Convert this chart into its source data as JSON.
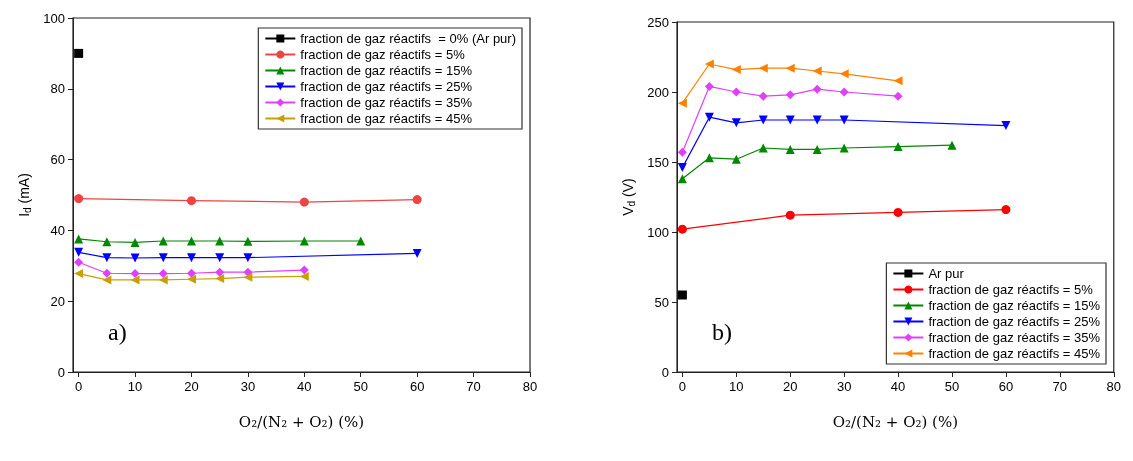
{
  "chart_data": [
    {
      "type": "line",
      "xlabel": "O₂/(N₂ + O₂) (%)",
      "ylabel": "I$_{d}$ (mA)",
      "xlim": [
        -1,
        80
      ],
      "xticks": [
        0,
        10,
        20,
        30,
        40,
        50,
        60,
        70,
        80
      ],
      "ylim": [
        0,
        100
      ],
      "yticks": [
        0,
        20,
        40,
        60,
        80,
        100
      ],
      "grid": false,
      "legend": "top right",
      "annotations": [
        "a)"
      ],
      "series": [
        {
          "name": "fraction de gaz réactifs  = 0% (Ar pur)",
          "color": "#000000",
          "marker": "square",
          "x": [
            0
          ],
          "values": [
            90
          ]
        },
        {
          "name": "fraction de gaz réactifs = 5%",
          "color": "#ee4444",
          "marker": "circle",
          "x": [
            0,
            20,
            40,
            60
          ],
          "values": [
            49,
            48.4,
            48,
            48.7
          ]
        },
        {
          "name": "fraction de gaz réactifs = 15%",
          "color": "#008800",
          "marker": "triangle",
          "x": [
            0,
            5,
            10,
            15,
            20,
            25,
            30,
            40,
            50
          ],
          "values": [
            37.6,
            36.8,
            36.6,
            37,
            37,
            37,
            36.9,
            37,
            37
          ]
        },
        {
          "name": "fraction de gaz réactifs = 25%",
          "color": "#0000ff",
          "marker": "triangle-down",
          "x": [
            0,
            5,
            10,
            15,
            20,
            25,
            30,
            60
          ],
          "values": [
            33.8,
            32.3,
            32.2,
            32.3,
            32.3,
            32.3,
            32.3,
            33.5
          ]
        },
        {
          "name": "fraction de gaz réactifs = 35%",
          "color": "#e040fb",
          "marker": "diamond",
          "x": [
            0,
            5,
            10,
            15,
            20,
            25,
            30,
            40
          ],
          "values": [
            31,
            27.9,
            27.8,
            27.8,
            27.9,
            28.2,
            28.2,
            28.8
          ]
        },
        {
          "name": "fraction de gaz réactifs = 45%",
          "color": "#c8a000",
          "marker": "triangle-left",
          "x": [
            0,
            5,
            10,
            15,
            20,
            25,
            30,
            40
          ],
          "values": [
            27.8,
            26,
            26,
            26,
            26.2,
            26.4,
            26.8,
            27
          ]
        }
      ]
    },
    {
      "type": "line",
      "xlabel": "O₂/(N₂ + O₂) (%)",
      "ylabel": "V$_{d}$ (V)",
      "xlim": [
        -1,
        80
      ],
      "xticks": [
        0,
        10,
        20,
        30,
        40,
        50,
        60,
        70,
        80
      ],
      "ylim": [
        0,
        250
      ],
      "yticks": [
        0,
        50,
        100,
        150,
        200,
        250
      ],
      "grid": false,
      "legend": "bottom right",
      "annotations": [
        "b)"
      ],
      "series": [
        {
          "name": "Ar pur",
          "color": "#000000",
          "marker": "square",
          "x": [
            0
          ],
          "values": [
            55
          ]
        },
        {
          "name": "fraction de gaz réactifs = 5%",
          "color": "#ff0000",
          "marker": "circle",
          "x": [
            0,
            20,
            40,
            60
          ],
          "values": [
            102,
            112,
            114,
            116
          ]
        },
        {
          "name": "fraction de gaz réactifs = 15%",
          "color": "#008800",
          "marker": "triangle",
          "x": [
            0,
            5,
            10,
            15,
            20,
            25,
            30,
            40,
            50
          ],
          "values": [
            138,
            153,
            152,
            160,
            159,
            159,
            160,
            161,
            162
          ]
        },
        {
          "name": "fraction de gaz réactifs = 25%",
          "color": "#0000ff",
          "marker": "triangle-down",
          "x": [
            0,
            5,
            10,
            15,
            20,
            25,
            30,
            60
          ],
          "values": [
            146,
            182,
            178,
            180,
            180,
            180,
            180,
            176
          ]
        },
        {
          "name": "fraction de gaz réactifs = 35%",
          "color": "#e040fb",
          "marker": "diamond",
          "x": [
            0,
            5,
            10,
            15,
            20,
            25,
            30,
            40
          ],
          "values": [
            157,
            204,
            200,
            197,
            198,
            202,
            200,
            197
          ]
        },
        {
          "name": "fraction de gaz réactifs = 45%",
          "color": "#ff8000",
          "marker": "triangle-left",
          "x": [
            0,
            5,
            10,
            15,
            20,
            25,
            30,
            40
          ],
          "values": [
            192,
            220,
            216,
            217,
            217,
            215,
            213,
            208
          ]
        }
      ]
    }
  ]
}
